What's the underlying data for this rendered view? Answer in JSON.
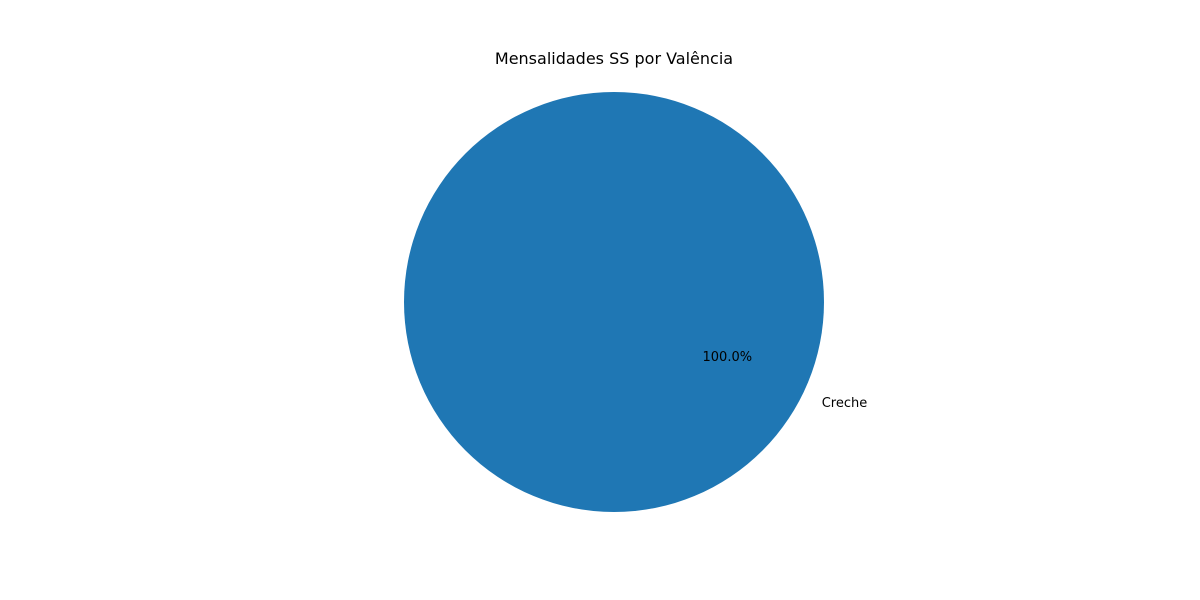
{
  "chart_data": {
    "type": "pie",
    "title": "Mensalidades SS por Valência",
    "labels": [
      "Creche"
    ],
    "values": [
      1
    ],
    "percent_labels": [
      "100.0%"
    ],
    "colors": [
      "#1f77b4"
    ],
    "start_angle_deg": 0
  }
}
